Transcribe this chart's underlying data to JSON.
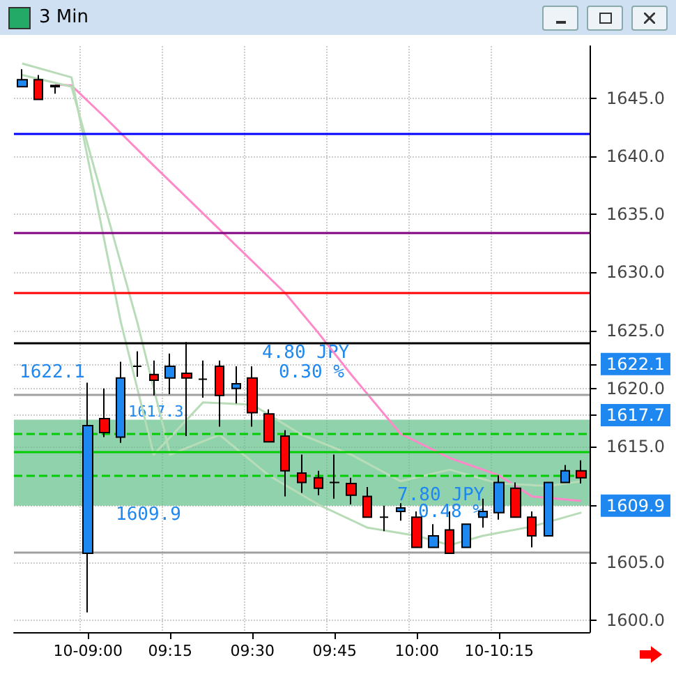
{
  "chart_data": {
    "type": "candlestick",
    "title": "3 Min",
    "categories": [
      null,
      null,
      null,
      null,
      "10-09:00",
      null,
      null,
      null,
      null,
      "09:15",
      null,
      null,
      null,
      null,
      "09:30",
      null,
      null,
      null,
      null,
      "09:45",
      null,
      null,
      null,
      null,
      "10:00",
      null,
      null,
      null,
      null,
      "10-10:15",
      null,
      null,
      null,
      null,
      null
    ],
    "ohlc": [
      [
        1646.0,
        1647.5,
        1646.0,
        1646.6
      ],
      [
        1646.6,
        1647.0,
        1644.9,
        1644.9
      ],
      [
        1646.1,
        1646.1,
        1645.4,
        1646.0
      ],
      null,
      [
        1605.8,
        1620.5,
        1600.7,
        1616.8
      ],
      [
        1617.4,
        1620.0,
        1615.8,
        1616.2
      ],
      [
        1615.8,
        1622.3,
        1615.3,
        1620.9
      ],
      [
        1621.9,
        1623.2,
        1621.0,
        1621.9
      ],
      [
        1621.2,
        1622.4,
        1619.4,
        1620.7
      ],
      [
        1620.9,
        1623.0,
        1619.5,
        1621.9
      ],
      [
        1621.3,
        1624.0,
        1615.9,
        1620.9
      ],
      [
        1620.8,
        1622.4,
        1619.2,
        1620.8
      ],
      [
        1621.9,
        1622.4,
        1616.7,
        1619.4
      ],
      [
        1620.0,
        1621.9,
        1618.7,
        1620.4
      ],
      [
        1620.9,
        1621.9,
        1616.7,
        1617.9
      ],
      [
        1617.8,
        1618.2,
        1615.4,
        1615.4
      ],
      [
        1615.9,
        1616.4,
        1610.7,
        1612.9
      ],
      [
        1612.7,
        1614.3,
        1611.0,
        1611.9
      ],
      [
        1612.3,
        1612.9,
        1610.8,
        1611.4
      ],
      [
        1611.9,
        1614.3,
        1610.5,
        1611.9
      ],
      [
        1611.8,
        1612.3,
        1610.0,
        1610.8
      ],
      [
        1610.7,
        1611.5,
        1608.9,
        1608.9
      ],
      [
        1608.9,
        1609.9,
        1607.7,
        1608.9
      ],
      [
        1609.4,
        1610.1,
        1608.6,
        1609.7
      ],
      [
        1608.9,
        1609.4,
        1606.3,
        1606.3
      ],
      [
        1606.3,
        1608.3,
        1606.3,
        1607.3
      ],
      [
        1607.8,
        1609.4,
        1605.8,
        1605.8
      ],
      [
        1606.3,
        1608.3,
        1606.3,
        1608.3
      ],
      [
        1608.9,
        1610.5,
        1608.0,
        1609.4
      ],
      [
        1609.3,
        1612.5,
        1608.7,
        1611.9
      ],
      [
        1611.4,
        1611.9,
        1608.9,
        1608.9
      ],
      [
        1608.9,
        1609.4,
        1606.3,
        1607.3
      ],
      [
        1607.3,
        1611.9,
        1607.3,
        1611.9
      ],
      [
        1611.9,
        1613.4,
        1611.9,
        1612.9
      ],
      [
        1612.9,
        1613.8,
        1611.8,
        1612.3
      ]
    ],
    "series": [
      {
        "type": "line",
        "color": "#ff88c8",
        "values": [
          null,
          null,
          1646.2,
          1646.1,
          null,
          1643.4,
          null,
          null,
          1639.2,
          null,
          null,
          null,
          1633.7,
          null,
          null,
          null,
          1628.2,
          null,
          1624.8,
          null,
          1621.2,
          null,
          null,
          1616.1,
          null,
          null,
          1614.0,
          null,
          null,
          1612.5,
          null,
          1610.7,
          null,
          null,
          1610.3
        ]
      },
      {
        "type": "line",
        "color": "#b8dcb8",
        "values": [
          1648.0,
          null,
          null,
          1646.8,
          null,
          null,
          1625.7,
          null,
          1614.3,
          null,
          null,
          1618.8,
          null,
          null,
          1618.6,
          null,
          null,
          1616.0,
          null,
          null,
          1614.3,
          null,
          null,
          1612.0,
          null,
          null,
          1613.0,
          null,
          null,
          1611.8,
          null,
          null,
          1611.6,
          null,
          1612.0
        ]
      },
      {
        "type": "line",
        "color": "#b8dcb8",
        "values": [
          1647.0,
          null,
          null,
          1646.0,
          null,
          null,
          null,
          1625.7,
          null,
          1614.3,
          null,
          null,
          1616.0,
          null,
          null,
          1612.5,
          null,
          null,
          1610.0,
          null,
          null,
          1608.0,
          null,
          null,
          1607.3,
          null,
          1606.5,
          null,
          1607.3,
          null,
          null,
          1608.1,
          null,
          null,
          1609.3
        ]
      }
    ],
    "ylim": [
      1599,
      1649.5
    ],
    "yticks": [
      {
        "value": 1600,
        "label": "1600.0"
      },
      {
        "value": 1605,
        "label": "1605.0"
      },
      {
        "value": 1615,
        "label": "1615.0"
      },
      {
        "value": 1620,
        "label": "1620.0"
      },
      {
        "value": 1625,
        "label": "1625.0"
      },
      {
        "value": 1630,
        "label": "1630.0"
      },
      {
        "value": 1635,
        "label": "1635.0"
      },
      {
        "value": 1640,
        "label": "1640.0"
      },
      {
        "value": 1645,
        "label": "1645.0"
      },
      {
        "value": 1622.1,
        "label": "1622.1"
      },
      {
        "value": 1617.7,
        "label": "1617.7"
      },
      {
        "value": 1609.9,
        "label": "1609.9"
      }
    ],
    "grid": true,
    "ref_lines": [
      {
        "axis": "y",
        "value": 1641.9,
        "color": "#0000ff",
        "line_style": "solid"
      },
      {
        "axis": "y",
        "value": 1633.4,
        "color": "#800080",
        "line_style": "solid"
      },
      {
        "axis": "y",
        "value": 1628.2,
        "color": "#ff0000",
        "line_style": "solid"
      },
      {
        "axis": "y",
        "value": 1623.9,
        "color": "#000000",
        "line_style": "solid"
      },
      {
        "axis": "y",
        "value": 1619.5,
        "color": "#a0a0a0",
        "line_style": "solid"
      },
      {
        "axis": "y",
        "value": 1616.1,
        "color": "#00cc00",
        "line_style": "dashed"
      },
      {
        "axis": "y",
        "value": 1614.6,
        "color": "#00cc00",
        "line_style": "solid"
      },
      {
        "axis": "y",
        "value": 1612.5,
        "color": "#00cc00",
        "line_style": "dashed"
      },
      {
        "axis": "y",
        "value": 1605.9,
        "color": "#a0a0a0",
        "line_style": "solid"
      }
    ],
    "bands": [
      {
        "axis": "y",
        "from": 1609.9,
        "to": 1617.3,
        "color": "#5fbf88"
      }
    ],
    "annotations": [
      "4.80 JPY",
      "0.30 %",
      "1622.1",
      "1617.3",
      "1609.9",
      "7.80 JPY",
      "0.48 %"
    ]
  }
}
